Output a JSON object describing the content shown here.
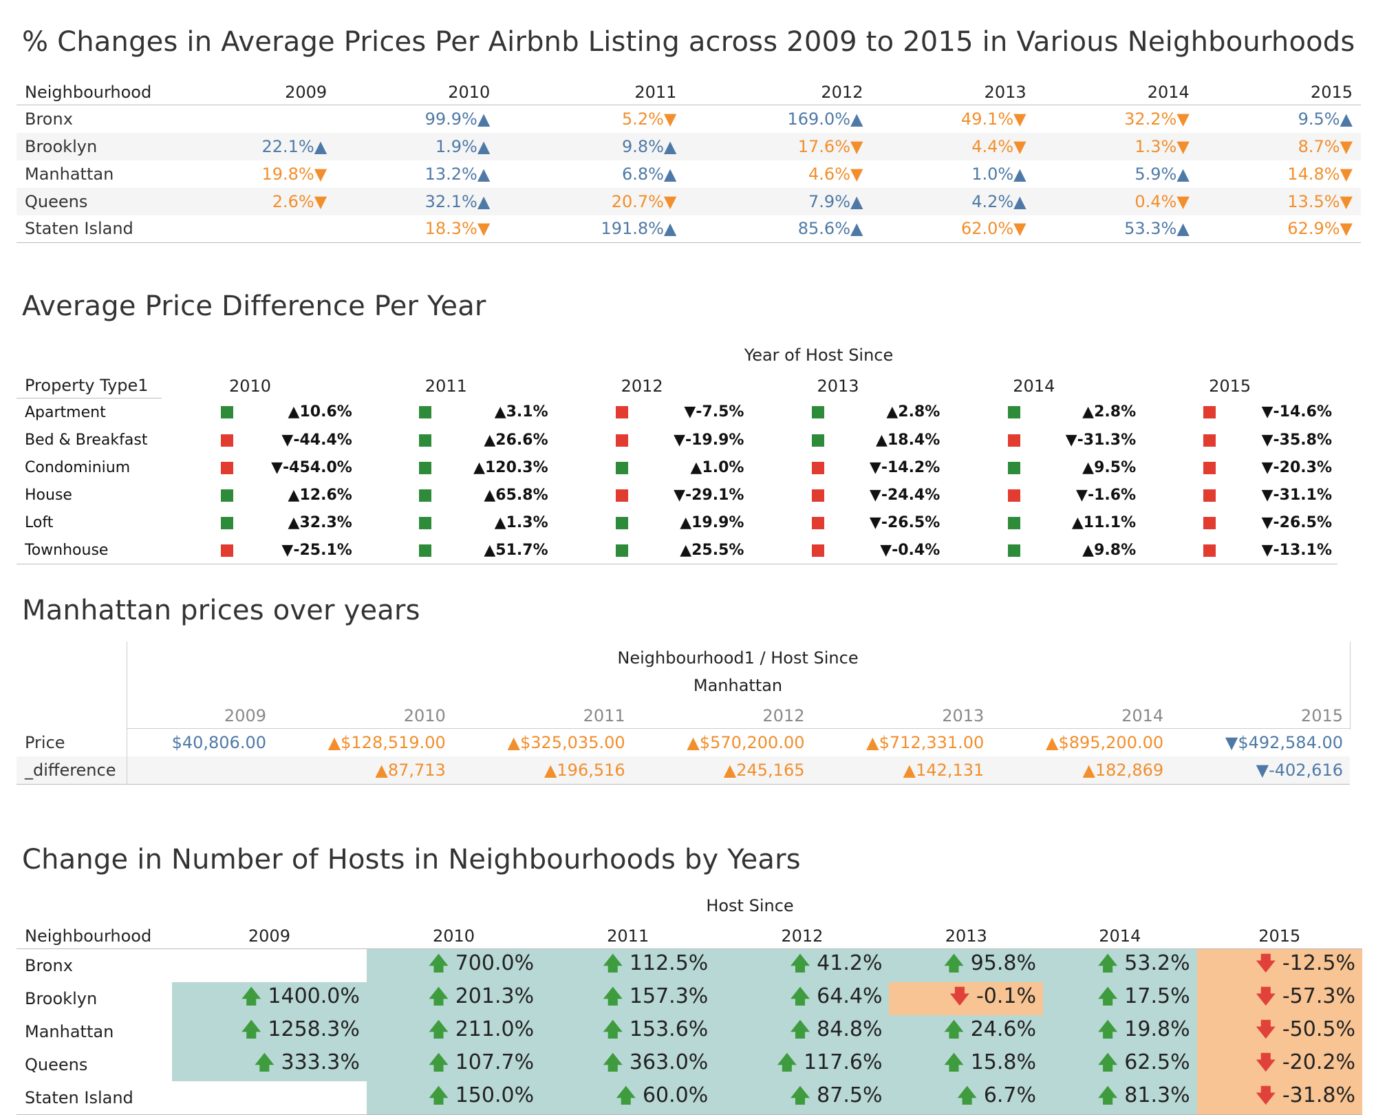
{
  "section1": {
    "title": "% Changes in Average Prices Per Airbnb Listing across 2009 to 2015 in Various Neighbourhoods",
    "row_header": "Neighbourhood",
    "years": [
      "2009",
      "2010",
      "2011",
      "2012",
      "2013",
      "2014",
      "2015"
    ],
    "rows": [
      {
        "label": "Bronx",
        "cells": [
          {
            "v": "",
            "d": ""
          },
          {
            "v": "99.9%▲",
            "d": "up"
          },
          {
            "v": "5.2%▼",
            "d": "down"
          },
          {
            "v": "169.0%▲",
            "d": "up"
          },
          {
            "v": "49.1%▼",
            "d": "down"
          },
          {
            "v": "32.2%▼",
            "d": "down"
          },
          {
            "v": "9.5%▲",
            "d": "up"
          }
        ]
      },
      {
        "label": "Brooklyn",
        "cells": [
          {
            "v": "22.1%▲",
            "d": "up"
          },
          {
            "v": "1.9%▲",
            "d": "up"
          },
          {
            "v": "9.8%▲",
            "d": "up"
          },
          {
            "v": "17.6%▼",
            "d": "down"
          },
          {
            "v": "4.4%▼",
            "d": "down"
          },
          {
            "v": "1.3%▼",
            "d": "down"
          },
          {
            "v": "8.7%▼",
            "d": "down"
          }
        ]
      },
      {
        "label": "Manhattan",
        "cells": [
          {
            "v": "19.8%▼",
            "d": "down"
          },
          {
            "v": "13.2%▲",
            "d": "up"
          },
          {
            "v": "6.8%▲",
            "d": "up"
          },
          {
            "v": "4.6%▼",
            "d": "down"
          },
          {
            "v": "1.0%▲",
            "d": "up"
          },
          {
            "v": "5.9%▲",
            "d": "up"
          },
          {
            "v": "14.8%▼",
            "d": "down"
          }
        ]
      },
      {
        "label": "Queens",
        "cells": [
          {
            "v": "2.6%▼",
            "d": "down"
          },
          {
            "v": "32.1%▲",
            "d": "up"
          },
          {
            "v": "20.7%▼",
            "d": "down"
          },
          {
            "v": "7.9%▲",
            "d": "up"
          },
          {
            "v": "4.2%▲",
            "d": "up"
          },
          {
            "v": "0.4%▼",
            "d": "down"
          },
          {
            "v": "13.5%▼",
            "d": "down"
          }
        ]
      },
      {
        "label": "Staten Island",
        "cells": [
          {
            "v": "",
            "d": ""
          },
          {
            "v": "18.3%▼",
            "d": "down"
          },
          {
            "v": "191.8%▲",
            "d": "up"
          },
          {
            "v": "85.6%▲",
            "d": "up"
          },
          {
            "v": "62.0%▼",
            "d": "down"
          },
          {
            "v": "53.3%▲",
            "d": "up"
          },
          {
            "v": "62.9%▼",
            "d": "down"
          }
        ]
      }
    ]
  },
  "section2": {
    "title": "Average Price Difference Per Year",
    "caption": "Year of Host Since",
    "row_header": "Property Type1",
    "years": [
      "2010",
      "2011",
      "2012",
      "2013",
      "2014",
      "2015"
    ],
    "rows": [
      {
        "label": "Apartment",
        "cells": [
          {
            "v": "▲10.6%",
            "c": "green"
          },
          {
            "v": "▲3.1%",
            "c": "green"
          },
          {
            "v": "▼-7.5%",
            "c": "red"
          },
          {
            "v": "▲2.8%",
            "c": "green"
          },
          {
            "v": "▲2.8%",
            "c": "green"
          },
          {
            "v": "▼-14.6%",
            "c": "red"
          }
        ]
      },
      {
        "label": "Bed & Breakfast",
        "cells": [
          {
            "v": "▼-44.4%",
            "c": "red"
          },
          {
            "v": "▲26.6%",
            "c": "green"
          },
          {
            "v": "▼-19.9%",
            "c": "red"
          },
          {
            "v": "▲18.4%",
            "c": "green"
          },
          {
            "v": "▼-31.3%",
            "c": "red"
          },
          {
            "v": "▼-35.8%",
            "c": "red"
          }
        ]
      },
      {
        "label": "Condominium",
        "cells": [
          {
            "v": "▼-454.0%",
            "c": "red"
          },
          {
            "v": "▲120.3%",
            "c": "green"
          },
          {
            "v": "▲1.0%",
            "c": "green"
          },
          {
            "v": "▼-14.2%",
            "c": "red"
          },
          {
            "v": "▲9.5%",
            "c": "green"
          },
          {
            "v": "▼-20.3%",
            "c": "red"
          }
        ]
      },
      {
        "label": "House",
        "cells": [
          {
            "v": "▲12.6%",
            "c": "green"
          },
          {
            "v": "▲65.8%",
            "c": "green"
          },
          {
            "v": "▼-29.1%",
            "c": "red"
          },
          {
            "v": "▼-24.4%",
            "c": "red"
          },
          {
            "v": "▼-1.6%",
            "c": "red"
          },
          {
            "v": "▼-31.1%",
            "c": "red"
          }
        ]
      },
      {
        "label": "Loft",
        "cells": [
          {
            "v": "▲32.3%",
            "c": "green"
          },
          {
            "v": "▲1.3%",
            "c": "green"
          },
          {
            "v": "▲19.9%",
            "c": "green"
          },
          {
            "v": "▼-26.5%",
            "c": "red"
          },
          {
            "v": "▲11.1%",
            "c": "green"
          },
          {
            "v": "▼-26.5%",
            "c": "red"
          }
        ]
      },
      {
        "label": "Townhouse",
        "cells": [
          {
            "v": "▼-25.1%",
            "c": "red"
          },
          {
            "v": "▲51.7%",
            "c": "green"
          },
          {
            "v": "▲25.5%",
            "c": "green"
          },
          {
            "v": "▼-0.4%",
            "c": "red"
          },
          {
            "v": "▲9.8%",
            "c": "green"
          },
          {
            "v": "▼-13.1%",
            "c": "red"
          }
        ]
      }
    ]
  },
  "section3": {
    "title": "Manhattan prices over years",
    "caption1": "Neighbourhood1  /  Host Since",
    "caption2": "Manhattan",
    "years": [
      "2009",
      "2010",
      "2011",
      "2012",
      "2013",
      "2014",
      "2015"
    ],
    "rows": [
      {
        "label": "Price",
        "cells": [
          {
            "v": "$40,806.00",
            "d": "up"
          },
          {
            "v": "▲$128,519.00",
            "d": "down"
          },
          {
            "v": "▲$325,035.00",
            "d": "down"
          },
          {
            "v": "▲$570,200.00",
            "d": "down"
          },
          {
            "v": "▲$712,331.00",
            "d": "down"
          },
          {
            "v": "▲$895,200.00",
            "d": "down"
          },
          {
            "v": "▼$492,584.00",
            "d": "up"
          }
        ]
      },
      {
        "label": "_difference",
        "cells": [
          {
            "v": "",
            "d": ""
          },
          {
            "v": "▲87,713",
            "d": "down"
          },
          {
            "v": "▲196,516",
            "d": "down"
          },
          {
            "v": "▲245,165",
            "d": "down"
          },
          {
            "v": "▲142,131",
            "d": "down"
          },
          {
            "v": "▲182,869",
            "d": "down"
          },
          {
            "v": "▼-402,616",
            "d": "up"
          }
        ]
      }
    ]
  },
  "section4": {
    "title": "Change in Number of Hosts in Neighbourhoods by Years",
    "caption": "Host Since",
    "row_header": "Neighbourhood",
    "years": [
      "2009",
      "2010",
      "2011",
      "2012",
      "2013",
      "2014",
      "2015"
    ],
    "rows": [
      {
        "label": "Bronx",
        "cells": [
          {
            "v": "",
            "a": "",
            "bg": ""
          },
          {
            "v": "700.0%",
            "a": "up",
            "bg": "teal"
          },
          {
            "v": "112.5%",
            "a": "up",
            "bg": "teal"
          },
          {
            "v": "41.2%",
            "a": "up",
            "bg": "teal"
          },
          {
            "v": "95.8%",
            "a": "up",
            "bg": "teal"
          },
          {
            "v": "53.2%",
            "a": "up",
            "bg": "teal"
          },
          {
            "v": "-12.5%",
            "a": "down",
            "bg": "peach"
          }
        ]
      },
      {
        "label": "Brooklyn",
        "cells": [
          {
            "v": "1400.0%",
            "a": "up",
            "bg": "teal"
          },
          {
            "v": "201.3%",
            "a": "up",
            "bg": "teal"
          },
          {
            "v": "157.3%",
            "a": "up",
            "bg": "teal"
          },
          {
            "v": "64.4%",
            "a": "up",
            "bg": "teal"
          },
          {
            "v": "-0.1%",
            "a": "down",
            "bg": "peach"
          },
          {
            "v": "17.5%",
            "a": "up",
            "bg": "teal"
          },
          {
            "v": "-57.3%",
            "a": "down",
            "bg": "peach"
          }
        ]
      },
      {
        "label": "Manhattan",
        "cells": [
          {
            "v": "1258.3%",
            "a": "up",
            "bg": "teal"
          },
          {
            "v": "211.0%",
            "a": "up",
            "bg": "teal"
          },
          {
            "v": "153.6%",
            "a": "up",
            "bg": "teal"
          },
          {
            "v": "84.8%",
            "a": "up",
            "bg": "teal"
          },
          {
            "v": "24.6%",
            "a": "up",
            "bg": "teal"
          },
          {
            "v": "19.8%",
            "a": "up",
            "bg": "teal"
          },
          {
            "v": "-50.5%",
            "a": "down",
            "bg": "peach"
          }
        ]
      },
      {
        "label": "Queens",
        "cells": [
          {
            "v": "333.3%",
            "a": "up",
            "bg": "teal"
          },
          {
            "v": "107.7%",
            "a": "up",
            "bg": "teal"
          },
          {
            "v": "363.0%",
            "a": "up",
            "bg": "teal"
          },
          {
            "v": "117.6%",
            "a": "up",
            "bg": "teal"
          },
          {
            "v": "15.8%",
            "a": "up",
            "bg": "teal"
          },
          {
            "v": "62.5%",
            "a": "up",
            "bg": "teal"
          },
          {
            "v": "-20.2%",
            "a": "down",
            "bg": "peach"
          }
        ]
      },
      {
        "label": "Staten Island",
        "cells": [
          {
            "v": "",
            "a": "",
            "bg": ""
          },
          {
            "v": "150.0%",
            "a": "up",
            "bg": "teal"
          },
          {
            "v": "60.0%",
            "a": "up",
            "bg": "teal"
          },
          {
            "v": "87.5%",
            "a": "up",
            "bg": "teal"
          },
          {
            "v": "6.7%",
            "a": "up",
            "bg": "teal"
          },
          {
            "v": "81.3%",
            "a": "up",
            "bg": "teal"
          },
          {
            "v": "-31.8%",
            "a": "down",
            "bg": "peach"
          }
        ]
      }
    ]
  },
  "chart_data": [
    {
      "type": "table",
      "title": "% Changes in Average Prices Per Airbnb Listing across 2009 to 2015 in Various Neighbourhoods"
    },
    {
      "type": "table",
      "title": "Average Price Difference Per Year"
    },
    {
      "type": "table",
      "title": "Manhattan prices over years"
    },
    {
      "type": "table",
      "title": "Change in Number of Hosts in Neighbourhoods by Years"
    }
  ],
  "colors": {
    "up_blue": "#4e79a7",
    "down_orange": "#f28e2b",
    "green": "#2e8b3a",
    "red": "#e23b30",
    "teal": "#b8d8d5",
    "peach": "#f8c493"
  },
  "icons": {
    "up": "arrow-up-icon",
    "down": "arrow-down-icon"
  }
}
